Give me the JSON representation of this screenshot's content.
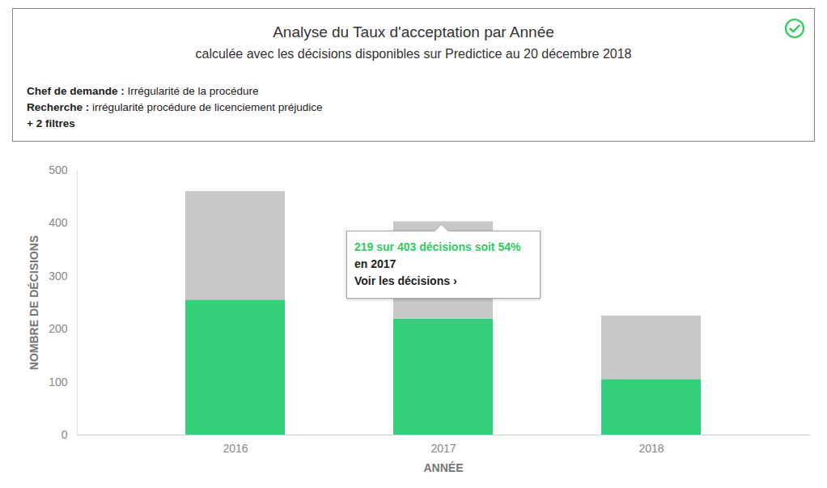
{
  "chart_data": {
    "type": "bar",
    "title": "Analyse du Taux d'acceptation par Année",
    "subtitle": "calculée avec les décisions disponibles sur Predictice au 20 décembre 2018",
    "filters": [
      {
        "label": "Chef de demande :",
        "text": "Irrégularité de la procédure"
      },
      {
        "label": "Recherche :",
        "text": "irrégularité procédure de licenciement préjudice"
      },
      {
        "label": "+ 2 filtres",
        "text": ""
      }
    ],
    "tooltip": [
      "219 sur 403 décisions soit 54%",
      "en 2017",
      "Voir les décisions ›"
    ],
    "categories": [
      "2016",
      "2017",
      "2018"
    ],
    "series": [
      {
        "color": "#33d17a",
        "values": [
          255,
          219,
          105
        ]
      },
      {
        "color": "#c8c8c8",
        "values": [
          205,
          184,
          120
        ]
      }
    ],
    "stacked": true,
    "xlabel": "ANNÉE",
    "ylabel": "NOMBRE DE DÉCISIONS",
    "ylim": [
      0,
      500
    ],
    "yticks": [
      0,
      100,
      200,
      300,
      400,
      500
    ],
    "grid": false
  }
}
